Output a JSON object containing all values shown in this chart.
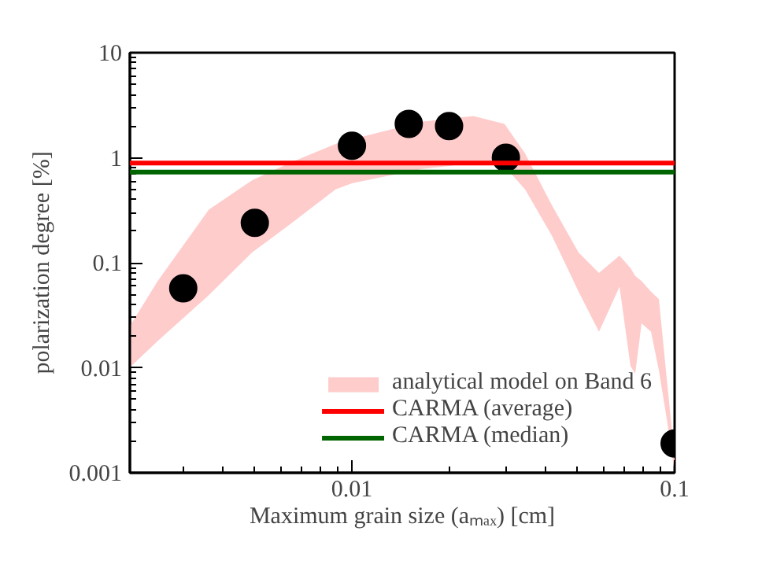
{
  "chart_data": {
    "type": "scatter",
    "xlabel": "Maximum grain size (aₘₐₓ) [cm]",
    "ylabel": "polarization degree [%]",
    "log": "xy",
    "xlim": [
      0.00205,
      0.1
    ],
    "ylim": [
      0.001,
      10
    ],
    "xticks": [
      0.01,
      0.1
    ],
    "yticks": [
      {
        "value": 0.001,
        "label": "0.001"
      },
      {
        "value": 0.01,
        "label": "0.01"
      },
      {
        "value": 0.1,
        "label": "0.1"
      },
      1,
      10
    ],
    "grid": false,
    "legend": "bottom right",
    "marker": "circle",
    "series": [
      {
        "type": "area",
        "name": "analytical model on Band 6",
        "color": "#ffcccc",
        "x": [
          0.00205,
          0.0025,
          0.0036,
          0.0049,
          0.0064,
          0.0089,
          0.01,
          0.0164,
          0.0238,
          0.0297,
          0.0344,
          0.0417,
          0.0504,
          0.0583,
          0.0675,
          0.073,
          0.0755,
          0.079,
          0.0845,
          0.0894,
          0.0945,
          0.1
        ],
        "values": [
          null,
          null,
          null,
          null,
          null,
          null,
          null,
          null,
          null,
          null,
          null,
          null,
          null,
          null,
          null,
          null,
          null,
          null,
          null,
          null,
          null,
          null
        ],
        "upper": [
          0.025,
          0.067,
          0.32,
          0.61,
          0.89,
          1.35,
          1.5,
          2.2,
          2.5,
          2.1,
          1.1,
          0.35,
          0.125,
          0.08,
          0.117,
          0.089,
          0.075,
          0.067,
          0.053,
          0.045,
          0.008,
          0.0014
        ],
        "lower": [
          0.0101,
          0.018,
          0.049,
          0.125,
          0.23,
          0.5,
          0.57,
          0.78,
          0.89,
          0.83,
          0.5,
          0.18,
          0.053,
          0.022,
          0.059,
          0.0104,
          0.0088,
          0.0265,
          0.022,
          0.0094,
          0.0033,
          0.001
        ]
      },
      {
        "color": "#000000",
        "x": [
          0.003,
          0.005,
          0.01,
          0.015,
          0.02,
          0.03,
          0.1
        ],
        "values": [
          0.057,
          0.24,
          1.3,
          2.1,
          2.0,
          1.0,
          0.0019
        ]
      }
    ],
    "ref_lines": [
      {
        "axis": "y",
        "value": 0.89,
        "label": "CARMA (average)",
        "color": "#ff0000",
        "line_style": "solid"
      },
      {
        "axis": "y",
        "value": 0.73,
        "label": "CARMA (median)",
        "color": "#006400",
        "line_style": "solid"
      }
    ]
  }
}
